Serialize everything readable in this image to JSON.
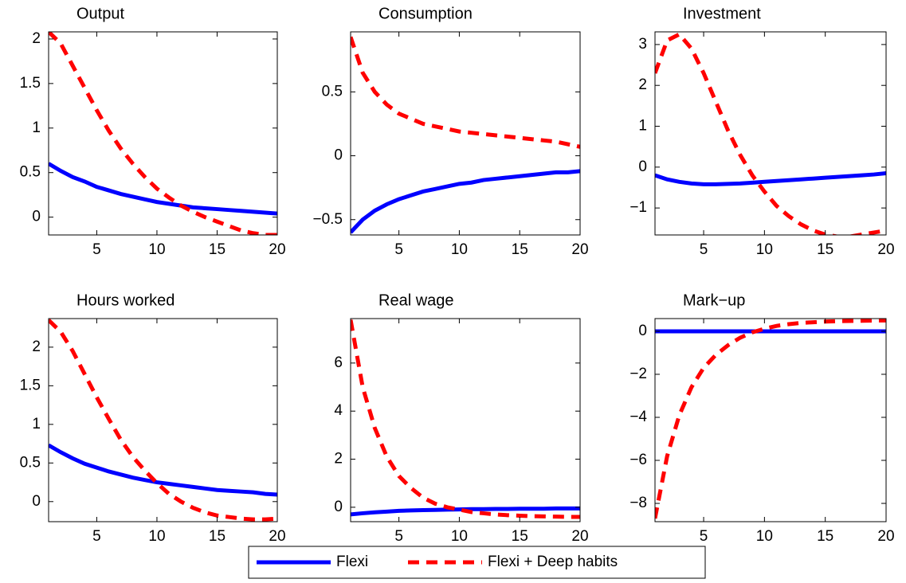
{
  "chart_data": [
    {
      "type": "line",
      "title": "Output",
      "x": [
        1,
        2,
        3,
        4,
        5,
        6,
        7,
        8,
        9,
        10,
        11,
        12,
        13,
        14,
        15,
        16,
        17,
        18,
        19,
        20
      ],
      "xlim": [
        1,
        20
      ],
      "xticks": [
        5,
        10,
        15,
        20
      ],
      "ylim": [
        -0.2,
        2.08
      ],
      "yticks": [
        0,
        0.5,
        1,
        1.5,
        2
      ],
      "series": [
        {
          "name": "Flexi",
          "color": "#0000ff",
          "values": [
            0.6,
            0.52,
            0.45,
            0.4,
            0.34,
            0.3,
            0.26,
            0.23,
            0.2,
            0.17,
            0.15,
            0.13,
            0.11,
            0.1,
            0.09,
            0.08,
            0.07,
            0.06,
            0.05,
            0.04
          ]
        },
        {
          "name": "Flexi + Deep habits",
          "color": "#ff0000",
          "values": [
            2.08,
            1.95,
            1.7,
            1.45,
            1.2,
            0.97,
            0.77,
            0.6,
            0.45,
            0.32,
            0.22,
            0.13,
            0.06,
            0.0,
            -0.05,
            -0.1,
            -0.15,
            -0.18,
            -0.2,
            -0.2
          ]
        }
      ]
    },
    {
      "type": "line",
      "title": "Consumption",
      "x": [
        1,
        2,
        3,
        4,
        5,
        6,
        7,
        8,
        9,
        10,
        11,
        12,
        13,
        14,
        15,
        16,
        17,
        18,
        19,
        20
      ],
      "xlim": [
        1,
        20
      ],
      "xticks": [
        5,
        10,
        15,
        20
      ],
      "ylim": [
        -0.62,
        0.97
      ],
      "yticks": [
        {
          "value": -0.5,
          "label": "−0.5"
        },
        0,
        0.5
      ],
      "series": [
        {
          "color": "#0000ff",
          "values": [
            -0.6,
            -0.5,
            -0.43,
            -0.38,
            -0.34,
            -0.31,
            -0.28,
            -0.26,
            -0.24,
            -0.22,
            -0.21,
            -0.19,
            -0.18,
            -0.17,
            -0.16,
            -0.15,
            -0.14,
            -0.13,
            -0.13,
            -0.12
          ]
        },
        {
          "color": "#ff0000",
          "values": [
            0.93,
            0.65,
            0.5,
            0.4,
            0.33,
            0.29,
            0.25,
            0.23,
            0.21,
            0.19,
            0.18,
            0.17,
            0.16,
            0.15,
            0.14,
            0.13,
            0.12,
            0.11,
            0.09,
            0.07
          ]
        }
      ]
    },
    {
      "type": "line",
      "title": "Investment",
      "x": [
        1,
        2,
        3,
        4,
        5,
        6,
        7,
        8,
        9,
        10,
        11,
        12,
        13,
        14,
        15,
        16,
        17,
        18,
        19,
        20
      ],
      "xlim": [
        1,
        20
      ],
      "xticks": [
        5,
        10,
        15,
        20
      ],
      "ylim": [
        -1.66,
        3.31
      ],
      "yticks": [
        {
          "value": -1,
          "label": "−1"
        },
        0,
        1,
        2,
        3
      ],
      "series": [
        {
          "color": "#0000ff",
          "values": [
            -0.2,
            -0.3,
            -0.36,
            -0.4,
            -0.42,
            -0.42,
            -0.41,
            -0.4,
            -0.38,
            -0.36,
            -0.34,
            -0.32,
            -0.3,
            -0.28,
            -0.26,
            -0.24,
            -0.22,
            -0.2,
            -0.18,
            -0.15
          ]
        },
        {
          "color": "#ff0000",
          "values": [
            2.3,
            3.1,
            3.25,
            2.9,
            2.3,
            1.6,
            0.9,
            0.3,
            -0.2,
            -0.6,
            -0.95,
            -1.2,
            -1.4,
            -1.55,
            -1.65,
            -1.7,
            -1.7,
            -1.65,
            -1.6,
            -1.55
          ]
        }
      ]
    },
    {
      "type": "line",
      "title": "Hours worked",
      "x": [
        1,
        2,
        3,
        4,
        5,
        6,
        7,
        8,
        9,
        10,
        11,
        12,
        13,
        14,
        15,
        16,
        17,
        18,
        19,
        20
      ],
      "xlim": [
        1,
        20
      ],
      "xticks": [
        5,
        10,
        15,
        20
      ],
      "ylim": [
        -0.26,
        2.37
      ],
      "yticks": [
        0,
        0.5,
        1,
        1.5,
        2
      ],
      "series": [
        {
          "color": "#0000ff",
          "values": [
            0.73,
            0.64,
            0.56,
            0.49,
            0.44,
            0.39,
            0.35,
            0.31,
            0.28,
            0.25,
            0.23,
            0.21,
            0.19,
            0.17,
            0.15,
            0.14,
            0.13,
            0.12,
            0.1,
            0.09
          ]
        },
        {
          "color": "#ff0000",
          "values": [
            2.35,
            2.2,
            1.95,
            1.65,
            1.35,
            1.07,
            0.8,
            0.58,
            0.4,
            0.24,
            0.1,
            0,
            -0.08,
            -0.14,
            -0.18,
            -0.2,
            -0.22,
            -0.23,
            -0.23,
            -0.22
          ]
        }
      ]
    },
    {
      "type": "line",
      "title": "Real wage",
      "x": [
        1,
        2,
        3,
        4,
        5,
        6,
        7,
        8,
        9,
        10,
        11,
        12,
        13,
        14,
        15,
        16,
        17,
        18,
        19,
        20
      ],
      "xlim": [
        1,
        20
      ],
      "xticks": [
        5,
        10,
        15,
        20
      ],
      "ylim": [
        -0.6,
        7.85
      ],
      "yticks": [
        0,
        2,
        4,
        6
      ],
      "series": [
        {
          "color": "#0000ff",
          "values": [
            -0.3,
            -0.25,
            -0.21,
            -0.18,
            -0.15,
            -0.13,
            -0.12,
            -0.11,
            -0.1,
            -0.09,
            -0.08,
            -0.08,
            -0.07,
            -0.07,
            -0.06,
            -0.06,
            -0.06,
            -0.05,
            -0.05,
            -0.05
          ]
        },
        {
          "color": "#ff0000",
          "values": [
            7.8,
            5,
            3.3,
            2.1,
            1.3,
            0.8,
            0.4,
            0.15,
            0,
            -0.1,
            -0.2,
            -0.25,
            -0.3,
            -0.33,
            -0.35,
            -0.37,
            -0.38,
            -0.39,
            -0.4,
            -0.4
          ]
        }
      ]
    },
    {
      "type": "line",
      "title": "Mark−up",
      "x": [
        1,
        2,
        3,
        4,
        5,
        6,
        7,
        8,
        9,
        10,
        11,
        12,
        13,
        14,
        15,
        16,
        17,
        18,
        19,
        20
      ],
      "xlim": [
        1,
        20
      ],
      "xticks": [
        5,
        10,
        15,
        20
      ],
      "ylim": [
        -8.85,
        0.59
      ],
      "yticks": [
        {
          "value": -8,
          "label": "−8"
        },
        {
          "value": -6,
          "label": "−6"
        },
        {
          "value": -4,
          "label": "−4"
        },
        {
          "value": -2,
          "label": "−2"
        },
        0
      ],
      "series": [
        {
          "color": "#0000ff",
          "values": [
            0,
            0,
            0,
            0,
            0,
            0,
            0,
            0,
            0,
            0,
            0,
            0,
            0,
            0,
            0,
            0,
            0,
            0,
            0,
            0
          ]
        },
        {
          "color": "#ff0000",
          "values": [
            -8.7,
            -5.8,
            -3.9,
            -2.6,
            -1.7,
            -1.1,
            -0.65,
            -0.3,
            -0.05,
            0.12,
            0.25,
            0.33,
            0.39,
            0.42,
            0.45,
            0.47,
            0.48,
            0.49,
            0.5,
            0.5
          ]
        }
      ]
    }
  ]
}
